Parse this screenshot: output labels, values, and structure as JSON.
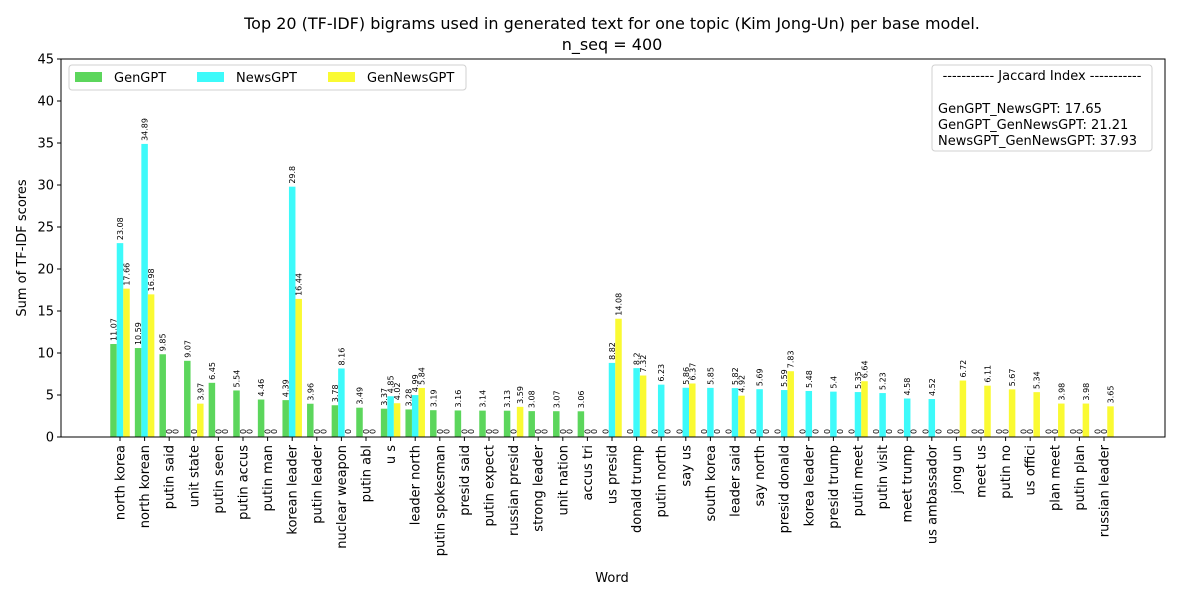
{
  "chart_data": {
    "type": "bar",
    "title_line1": "Top 20 (TF-IDF) bigrams used in generated text for one topic (Kim Jong-Un) per base model.",
    "title_line2": "n_seq = 400",
    "xlabel": "Word",
    "ylabel": "Sum of TF-IDF scores",
    "ylim": [
      0,
      45
    ],
    "yticks": [
      "0",
      "5",
      "10",
      "15",
      "20",
      "25",
      "30",
      "35",
      "40",
      "45"
    ],
    "grid": false,
    "legend_position": "top-left",
    "categories": [
      "north korea",
      "north korean",
      "putin said",
      "unit state",
      "putin seen",
      "putin accus",
      "putin man",
      "korean leader",
      "putin leader",
      "nuclear weapon",
      "putin abl",
      "u s",
      "leader north",
      "putin spokesman",
      "presid said",
      "putin expect",
      "russian presid",
      "strong leader",
      "unit nation",
      "accus tri",
      "us presid",
      "donald trump",
      "putin north",
      "say us",
      "south korea",
      "leader said",
      "say north",
      "presid donald",
      "korea leader",
      "presid trump",
      "putin meet",
      "putin visit",
      "meet trump",
      "us ambassador",
      "jong un",
      "meet us",
      "putin no",
      "us offici",
      "plan meet",
      "putin plan",
      "russian leader"
    ],
    "series": [
      {
        "name": "GenGPT",
        "color": "#5cd65c",
        "values": [
          11.07,
          10.59,
          9.85,
          9.07,
          6.45,
          5.54,
          4.46,
          4.39,
          3.96,
          3.78,
          3.49,
          3.37,
          3.28,
          3.19,
          3.16,
          3.14,
          3.13,
          3.08,
          3.07,
          3.06,
          0,
          0,
          0,
          0,
          0,
          0,
          0,
          0,
          0,
          0,
          0,
          0,
          0,
          0,
          0,
          0,
          0,
          0,
          0,
          0,
          0
        ],
        "labels": [
          "11.07",
          "10.59",
          "9.85",
          "9.07",
          "6.45",
          "5.54",
          "4.46",
          "4.39",
          "3.96",
          "3.78",
          "3.49",
          "3.37",
          "3.28",
          "3.19",
          "3.16",
          "3.14",
          "3.13",
          "3.08",
          "3.07",
          "3.06",
          "0",
          "0",
          "0",
          "0",
          "0",
          "0",
          "0",
          "0",
          "0",
          "0",
          "0",
          "0",
          "0",
          "0",
          "0",
          "0",
          "0",
          "0",
          "0",
          "0",
          "0"
        ]
      },
      {
        "name": "NewsGPT",
        "color": "#3dfafa",
        "values": [
          23.08,
          34.89,
          0,
          0,
          0,
          0,
          0,
          29.8,
          0,
          8.16,
          0,
          4.85,
          4.99,
          0,
          0,
          0,
          0,
          0,
          0,
          0,
          8.82,
          8.2,
          6.23,
          5.86,
          5.85,
          5.82,
          5.69,
          5.59,
          5.48,
          5.4,
          5.35,
          5.23,
          4.58,
          4.52,
          0,
          0,
          0,
          0,
          0,
          0,
          0
        ],
        "labels": [
          "23.08",
          "34.89",
          "0",
          "0",
          "0",
          "0",
          "0",
          "29.8",
          "0",
          "8.16",
          "0",
          "4.85",
          "4.99",
          "0",
          "0",
          "0",
          "0",
          "0",
          "0",
          "0",
          "8.82",
          "8.2",
          "6.23",
          "5.86",
          "5.85",
          "5.82",
          "5.69",
          "5.59",
          "5.48",
          "5.4",
          "5.35",
          "5.23",
          "4.58",
          "4.52",
          "0",
          "0",
          "0",
          "0",
          "0",
          "0",
          "0"
        ]
      },
      {
        "name": "GenNewsGPT",
        "color": "#fafa32",
        "values": [
          17.66,
          16.98,
          0,
          3.97,
          0,
          0,
          0,
          16.44,
          0,
          0,
          0,
          4.02,
          5.84,
          0,
          0,
          0,
          3.59,
          0,
          0,
          0,
          14.08,
          7.32,
          0,
          6.37,
          0,
          4.92,
          0,
          7.83,
          0,
          0,
          6.64,
          0,
          0,
          0,
          6.72,
          6.11,
          5.67,
          5.34,
          3.98,
          3.98,
          3.65
        ],
        "labels": [
          "17.66",
          "16.98",
          "0",
          "3.97",
          "0",
          "0",
          "0",
          "16.44",
          "0",
          "0",
          "0",
          "4.02",
          "5.84",
          "0",
          "0",
          "0",
          "3.59",
          "0",
          "0",
          "0",
          "14.08",
          "7.32",
          "0",
          "6.37",
          "0",
          "4.92",
          "0",
          "7.83",
          "0",
          "0",
          "6.64",
          "0",
          "0",
          "0",
          "6.72",
          "6.11",
          "5.67",
          "5.34",
          "3.98",
          "3.98",
          "3.65"
        ]
      }
    ],
    "jaccard_box": {
      "header": "----------- Jaccard Index -----------",
      "lines": [
        "GenGPT_NewsGPT: 17.65",
        "GenGPT_GenNewsGPT: 21.21",
        "NewsGPT_GenNewsGPT: 37.93"
      ]
    }
  }
}
